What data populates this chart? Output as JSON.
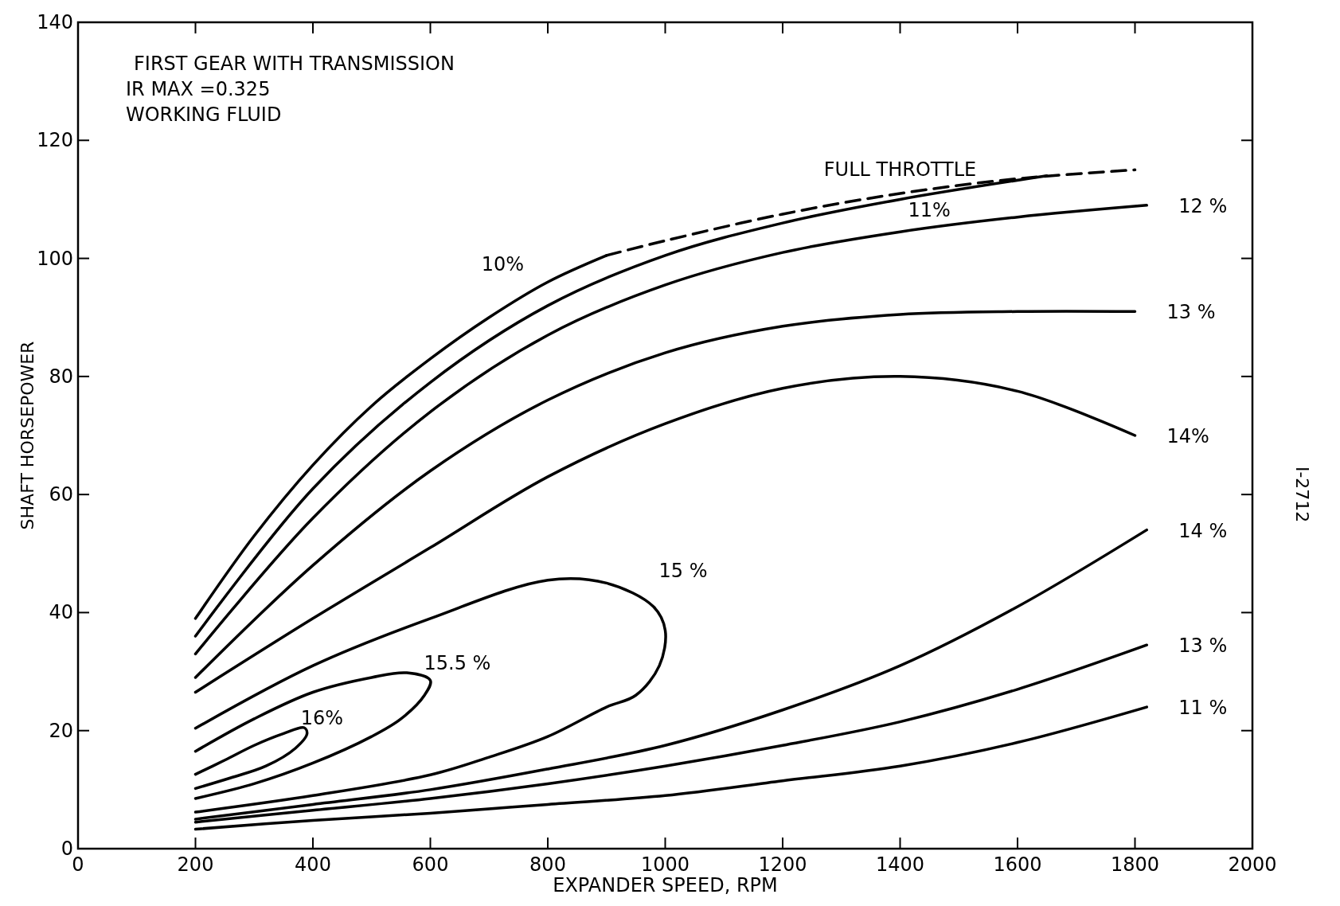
{
  "chart_data": {
    "type": "line",
    "xlabel": "EXPANDER SPEED, RPM",
    "ylabel": "SHAFT HORSEPOWER",
    "xlim": [
      0,
      2000
    ],
    "ylim": [
      0,
      140
    ],
    "xticks": [
      0,
      200,
      400,
      600,
      800,
      1000,
      1200,
      1400,
      1600,
      1800,
      2000
    ],
    "yticks": [
      0,
      20,
      40,
      60,
      80,
      100,
      120,
      140
    ],
    "series": [
      {
        "name": "FULL THROTTLE",
        "color": "#000000",
        "line_style": "dashed",
        "x": [
          900,
          1000,
          1200,
          1400,
          1600,
          1800
        ],
        "values": [
          100.5,
          103,
          107.5,
          111,
          113.5,
          115
        ]
      },
      {
        "name": "10%",
        "color": "#000000",
        "x": [
          200,
          300,
          400,
          500,
          600,
          700,
          800,
          900
        ],
        "values": [
          39,
          53,
          65,
          75,
          83,
          90,
          96,
          100.5
        ]
      },
      {
        "name": "11%",
        "color": "#000000",
        "x": [
          200,
          400,
          600,
          800,
          1000,
          1200,
          1400,
          1650
        ],
        "values": [
          36,
          61,
          79,
          92,
          100.5,
          106,
          110,
          114
        ]
      },
      {
        "name": "12 %",
        "color": "#000000",
        "x": [
          200,
          400,
          600,
          800,
          1000,
          1200,
          1400,
          1600,
          1820
        ],
        "values": [
          33,
          56,
          74,
          87,
          95.5,
          101,
          104.5,
          107,
          109
        ]
      },
      {
        "name": "13 %",
        "color": "#000000",
        "x": [
          200,
          400,
          600,
          800,
          1000,
          1200,
          1400,
          1600,
          1800
        ],
        "values": [
          29,
          48,
          64,
          76,
          84,
          88.5,
          90.5,
          91,
          91
        ]
      },
      {
        "name": "14%",
        "color": "#000000",
        "x": [
          200,
          400,
          600,
          800,
          1000,
          1200,
          1400,
          1600,
          1800
        ],
        "values": [
          26.5,
          39,
          51,
          63,
          72,
          78,
          80,
          77.5,
          70
        ]
      },
      {
        "name": "15 %",
        "color": "#000000",
        "x": [
          200,
          400,
          600,
          800,
          900,
          980,
          1000,
          990,
          950,
          900,
          800,
          700,
          600,
          400,
          200
        ],
        "values": [
          20.4,
          31,
          39,
          45.5,
          45,
          41,
          37,
          31,
          26,
          24,
          19,
          15.5,
          12.5,
          9,
          6.2
        ]
      },
      {
        "name": "15.5 %",
        "color": "#000000",
        "x": [
          200,
          300,
          400,
          500,
          560,
          600,
          590,
          550,
          500,
          400,
          300,
          200
        ],
        "values": [
          16.5,
          22,
          26.5,
          29,
          29.8,
          28.5,
          26,
          22,
          19,
          14.5,
          11,
          8.5
        ]
      },
      {
        "name": "16%",
        "color": "#000000",
        "x": [
          200,
          250,
          300,
          350,
          385,
          390,
          370,
          320,
          260,
          200
        ],
        "values": [
          12.6,
          15,
          17.5,
          19.5,
          20.5,
          19.5,
          17,
          14,
          12,
          10.2
        ]
      },
      {
        "name": "14 %",
        "color": "#000000",
        "x": [
          200,
          400,
          600,
          800,
          1000,
          1200,
          1400,
          1600,
          1820
        ],
        "values": [
          5,
          7.5,
          10,
          13.5,
          17.5,
          23.5,
          31,
          41,
          54
        ]
      },
      {
        "name": "13 %",
        "color": "#000000",
        "x": [
          200,
          400,
          600,
          800,
          1000,
          1200,
          1400,
          1600,
          1820
        ],
        "values": [
          4.5,
          6.5,
          8.5,
          11,
          14,
          17.5,
          21.5,
          27,
          34.5
        ]
      },
      {
        "name": "11 %",
        "color": "#000000",
        "x": [
          200,
          400,
          600,
          800,
          1000,
          1200,
          1400,
          1600,
          1820
        ],
        "values": [
          3.3,
          4.8,
          6,
          7.5,
          9,
          11.5,
          14,
          18,
          24
        ]
      }
    ],
    "annotations": [
      "FIRST GEAR WITH TRANSMISSION",
      "IR MAX =0.325",
      "WORKING FLUID",
      "I-2712"
    ]
  }
}
